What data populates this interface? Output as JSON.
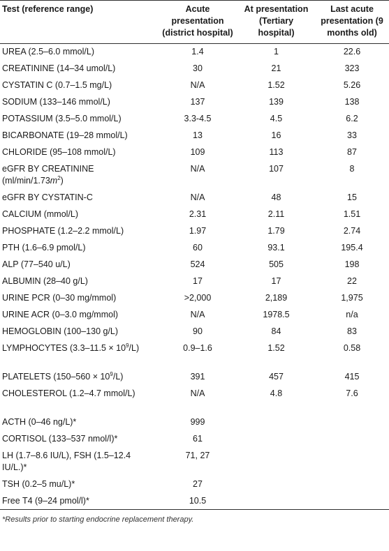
{
  "table": {
    "headers": [
      "Test (reference range)",
      "Acute presentation (district hospital)",
      "At presentation (Tertiary hospital)",
      "Last acute presentation (9 months old)"
    ],
    "rows": [
      {
        "test": "UREA (2.5–6.0 mmol/L)",
        "acute": "1.4",
        "presentation": "1",
        "last": "22.6"
      },
      {
        "test": "CREATININE (14–34 umol/L)",
        "acute": "30",
        "presentation": "21",
        "last": "323"
      },
      {
        "test": "CYSTATIN C (0.7–1.5 mg/L)",
        "acute": "N/A",
        "presentation": "1.52",
        "last": "5.26"
      },
      {
        "test": "SODIUM (133–146 mmol/L)",
        "acute": "137",
        "presentation": "139",
        "last": "138"
      },
      {
        "test": "POTASSIUM (3.5–5.0 mmol/L)",
        "acute": "3.3-4.5",
        "presentation": "4.5",
        "last": "6.2"
      },
      {
        "test": "BICARBONATE (19–28 mmol/L)",
        "acute": "13",
        "presentation": "16",
        "last": "33"
      },
      {
        "test": "CHLORIDE (95–108 mmol/L)",
        "acute": "109",
        "presentation": "113",
        "last": "87"
      },
      {
        "test_pre": "eGFR BY CREATININE (ml/min/1.73",
        "test_unit": "m",
        "test_sup": "2",
        "test_post": ")",
        "acute": "N/A",
        "presentation": "107",
        "last": "8"
      },
      {
        "test": "eGFR BY CYSTATIN-C",
        "acute": "N/A",
        "presentation": "48",
        "last": "15"
      },
      {
        "test": "CALCIUM (mmol/L)",
        "acute": "2.31",
        "presentation": "2.11",
        "last": "1.51"
      },
      {
        "test": "PHOSPHATE (1.2–2.2 mmol/L)",
        "acute": "1.97",
        "presentation": "1.79",
        "last": "2.74"
      },
      {
        "test": "PTH (1.6–6.9 pmol/L)",
        "acute": "60",
        "presentation": "93.1",
        "last": "195.4"
      },
      {
        "test": "ALP (77–540 u/L)",
        "acute": "524",
        "presentation": "505",
        "last": "198"
      },
      {
        "test": "ALBUMIN (28–40 g/L)",
        "acute": "17",
        "presentation": "17",
        "last": "22"
      },
      {
        "test": "URINE PCR (0–30 mg/mmol)",
        "acute": ">2,000",
        "presentation": "2,189",
        "last": "1,975"
      },
      {
        "test": "URINE ACR (0–3.0 mg/mmol)",
        "acute": "N/A",
        "presentation": "1978.5",
        "last": "n/a"
      },
      {
        "test": "HEMOGLOBIN (100–130 g/L)",
        "acute": "90",
        "presentation": "84",
        "last": "83"
      },
      {
        "test_pre": "LYMPHOCYTES (3.3–11.5 × 10",
        "test_sup": "9",
        "test_post": "/L)",
        "acute": "0.9–1.6",
        "presentation": "1.52",
        "last": "0.58"
      },
      {
        "test_pre": "PLATELETS (150–560 × 10",
        "test_sup": "9",
        "test_post": "/L)",
        "acute": "391",
        "presentation": "457",
        "last": "415"
      },
      {
        "test": "CHOLESTEROL (1.2–4.7 mmol/L)",
        "acute": "N/A",
        "presentation": "4.8",
        "last": "7.6"
      },
      {
        "test": "ACTH (0–46 ng/L)*",
        "acute": "999",
        "presentation": "",
        "last": ""
      },
      {
        "test": "CORTISOL (133–537 nmol/l)*",
        "acute": "61",
        "presentation": "",
        "last": ""
      },
      {
        "test": "LH (1.7–8.6 IU/L), FSH (1.5–12.4 IU/L.)*",
        "acute": "71, 27",
        "presentation": "",
        "last": ""
      },
      {
        "test": "TSH (0.2–5 mu/L)*",
        "acute": "27",
        "presentation": "",
        "last": ""
      },
      {
        "test": "Free T4 (9–24 pmol/l)*",
        "acute": "10.5",
        "presentation": "",
        "last": ""
      }
    ],
    "footnote": "*Results prior to starting endocrine replacement therapy."
  }
}
